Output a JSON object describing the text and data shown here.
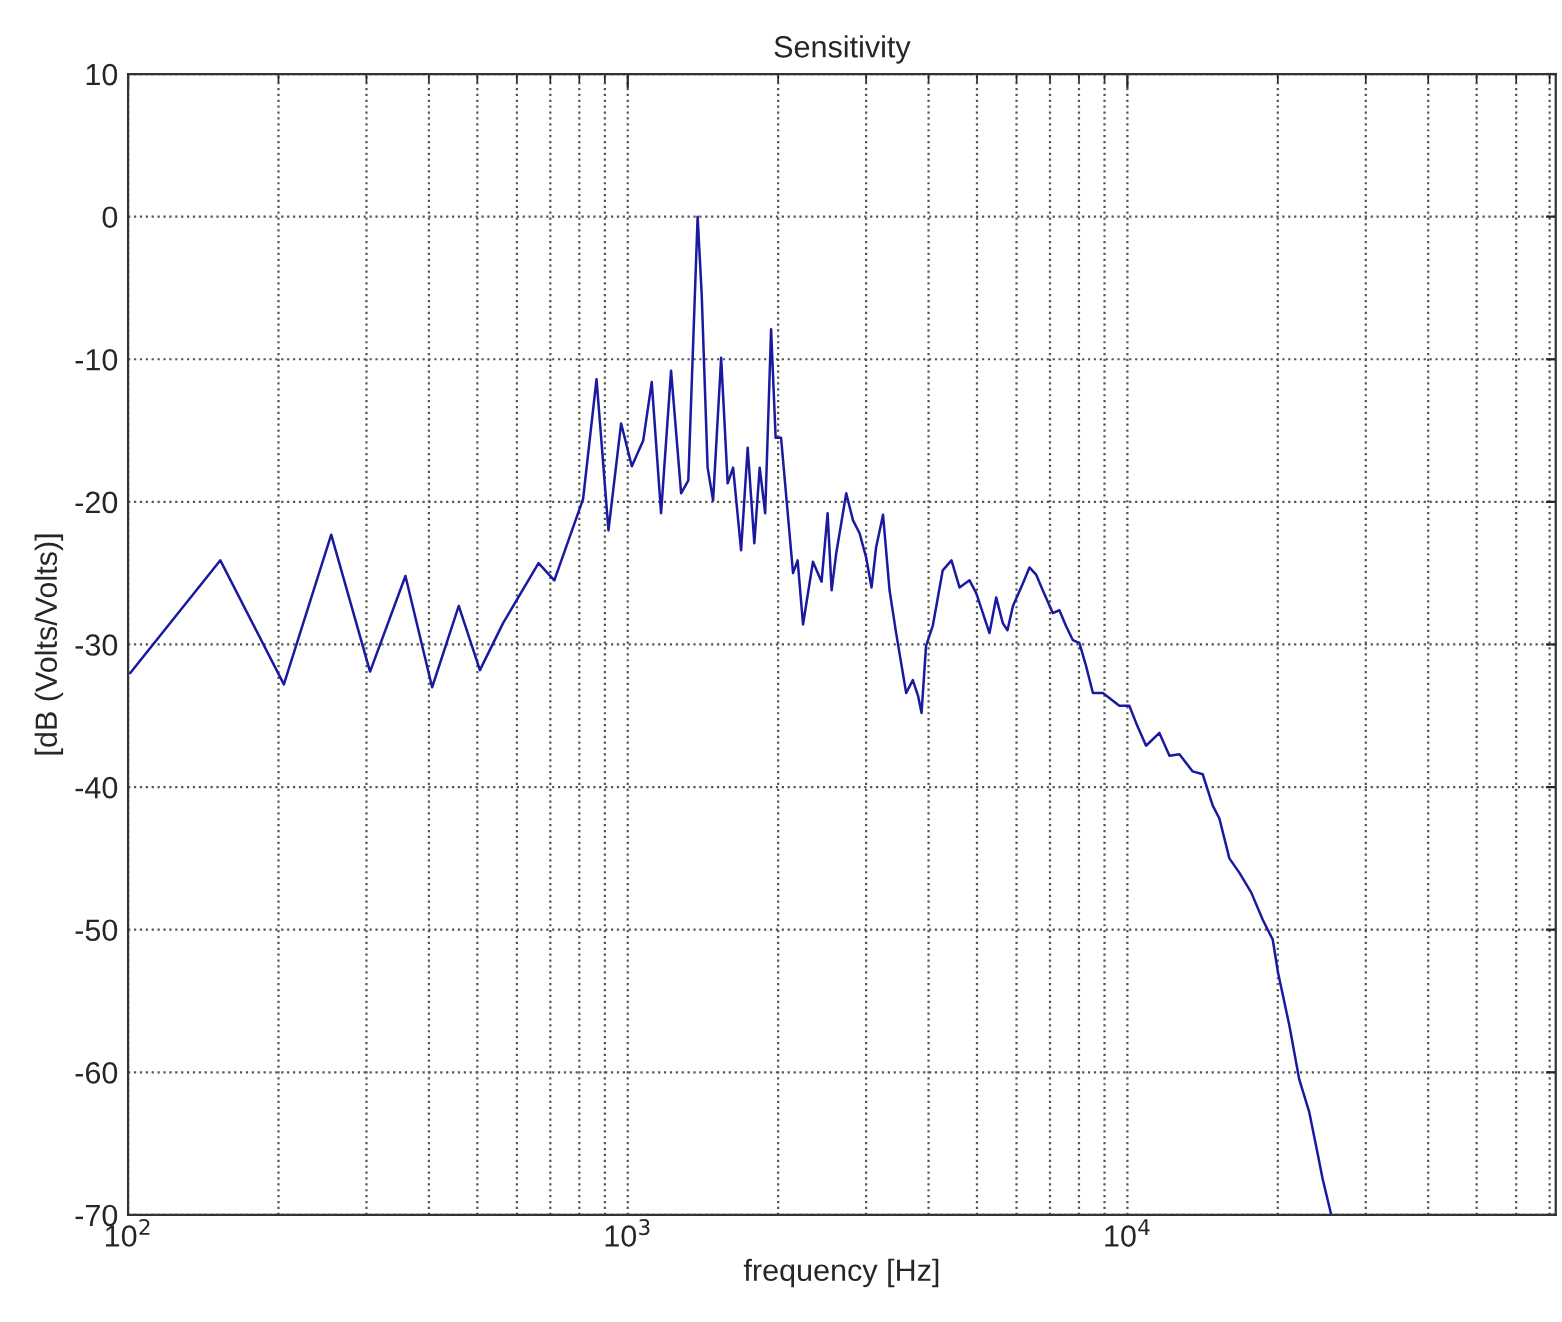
{
  "chart_data": {
    "type": "line",
    "title": "Sensitivity",
    "xlabel": "frequency [Hz]",
    "ylabel": "[dB (Volts/Volts)]",
    "log": "x",
    "grid": true,
    "marker": "none",
    "line_style": "solid",
    "xlim": [
      100,
      72000
    ],
    "xticks": [
      {
        "value": 100,
        "label": "10$^{2}$"
      },
      {
        "value": 1000,
        "label": "10$^{3}$"
      },
      {
        "value": 10000,
        "label": "10$^{4}$"
      }
    ],
    "ylim": [
      -70,
      10
    ],
    "yticks": [
      -70,
      -60,
      -50,
      -40,
      -30,
      -20,
      -10,
      0,
      10
    ],
    "x": [
      101,
      153,
      205,
      255,
      305,
      359,
      406,
      459,
      506,
      563,
      663,
      713,
      814,
      866,
      915,
      970,
      1019,
      1074,
      1117,
      1166,
      1221,
      1279,
      1322,
      1380,
      1406,
      1445,
      1482,
      1538,
      1585,
      1625,
      1686,
      1738,
      1792,
      1837,
      1884,
      1936,
      1977,
      2027,
      2142,
      2188,
      2243,
      2348,
      2443,
      2512,
      2559,
      2614,
      2737,
      2824,
      2911,
      3000,
      3076,
      3141,
      3243,
      3342,
      3445,
      3608,
      3720,
      3811,
      3873,
      3954,
      4078,
      4270,
      4446,
      4613,
      4831,
      4983,
      5297,
      5463,
      5632,
      5754,
      5902,
      6180,
      6368,
      6566,
      6770,
      7090,
      7311,
      7537,
      7780,
      8017,
      8265,
      8531,
      8933,
      9636,
      10090,
      10410,
      10900,
      11590,
      12140,
      12710,
      13510,
      14150,
      14820,
      15280,
      16000,
      16750,
      17700,
      18660,
      19540,
      20020,
      21090,
      22080,
      23120,
      23840,
      24600,
      25590
    ],
    "series": [
      {
        "color": "#1a1aa0",
        "values": [
          -32.0,
          -24.1,
          -32.8,
          -22.3,
          -31.9,
          -25.2,
          -33.0,
          -27.3,
          -31.8,
          -28.5,
          -24.3,
          -25.5,
          -19.8,
          -11.4,
          -22.0,
          -14.5,
          -17.5,
          -15.7,
          -11.6,
          -20.8,
          -10.8,
          -19.4,
          -18.5,
          0,
          -5.4,
          -17.6,
          -19.9,
          -9.9,
          -18.7,
          -17.6,
          -23.4,
          -16.2,
          -22.9,
          -17.6,
          -20.8,
          -7.9,
          -15.5,
          -15.5,
          -25.0,
          -24.1,
          -28.6,
          -24.2,
          -25.6,
          -20.8,
          -26.2,
          -23.6,
          -19.4,
          -21.3,
          -22.2,
          -23.9,
          -26.0,
          -23.2,
          -20.9,
          -26.2,
          -29.2,
          -33.4,
          -32.5,
          -33.6,
          -34.8,
          -30.1,
          -28.7,
          -24.8,
          -24.1,
          -26.0,
          -25.5,
          -26.4,
          -29.2,
          -26.7,
          -28.5,
          -29.0,
          -27.3,
          -25.7,
          -24.6,
          -25.1,
          -26.2,
          -27.8,
          -27.6,
          -28.7,
          -29.7,
          -29.9,
          -31.5,
          -33.4,
          -33.4,
          -34.3,
          -34.3,
          -35.5,
          -37.1,
          -36.2,
          -37.8,
          -37.7,
          -38.9,
          -39.1,
          -41.3,
          -42.2,
          -45.0,
          -46.0,
          -47.4,
          -49.3,
          -50.7,
          -53.0,
          -56.7,
          -60.5,
          -62.8,
          -65.1,
          -67.5,
          -70
        ]
      }
    ]
  }
}
